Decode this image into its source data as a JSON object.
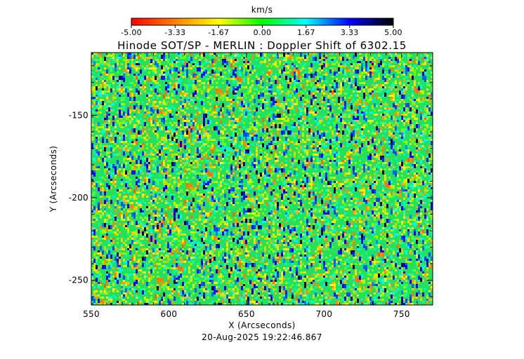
{
  "chart_data": {
    "type": "heatmap",
    "title": "Hinode SOT/SP - MERLIN : Doppler Shift of 6302.15",
    "xlabel": "X (Arcseconds)",
    "ylabel": "Y (Arcseconds)",
    "timestamp": "20-Aug-2025 19:22:46.867",
    "xlim": [
      550,
      770
    ],
    "ylim": [
      -265,
      -112
    ],
    "x_ticks": [
      "550",
      "600",
      "650",
      "700",
      "750"
    ],
    "x_tick_values": [
      550,
      600,
      650,
      700,
      750
    ],
    "y_ticks": [
      "-150",
      "-200",
      "-250"
    ],
    "y_tick_values": [
      -150,
      -200,
      -250
    ],
    "colorbar": {
      "label": "km/s",
      "range": [
        -5.0,
        5.0
      ],
      "ticks": [
        "-5.00",
        "-3.33",
        "-1.67",
        "0.00",
        "1.67",
        "3.33",
        "5.00"
      ],
      "colormap": [
        "#ff0000",
        "#ff8000",
        "#ffff00",
        "#00ff00",
        "#00ffff",
        "#0000ff",
        "#000000"
      ]
    },
    "field": {
      "description_free": true,
      "mean": 0.0,
      "dominant_value": 0.0,
      "noise": "granular doppler pattern"
    }
  }
}
